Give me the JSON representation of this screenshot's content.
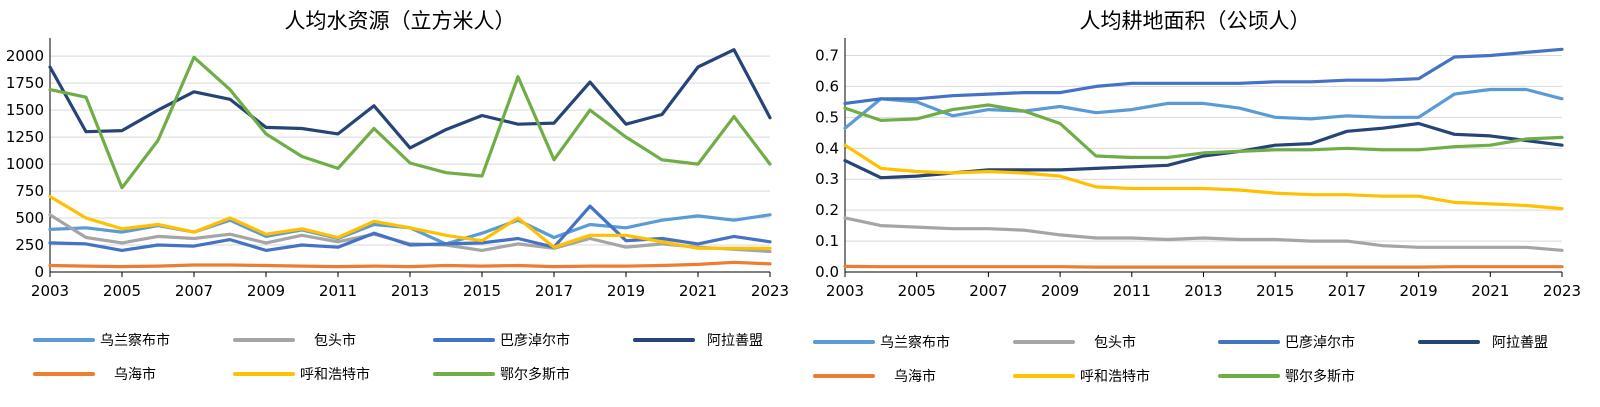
{
  "chart_data": [
    {
      "type": "line",
      "title": "人均水资源（立方米人）",
      "xlabel": "",
      "ylabel": "",
      "grid": true,
      "legend_position": "bottom",
      "x": [
        2003,
        2004,
        2005,
        2006,
        2007,
        2008,
        2009,
        2010,
        2011,
        2012,
        2013,
        2014,
        2015,
        2016,
        2017,
        2018,
        2019,
        2020,
        2021,
        2022,
        2023
      ],
      "xticks": [
        "2003",
        "2005",
        "2007",
        "2009",
        "2011",
        "2013",
        "2015",
        "2017",
        "2019",
        "2021",
        "2023"
      ],
      "ylim": [
        0,
        2150
      ],
      "yticks": [
        0,
        250,
        500,
        750,
        1000,
        1250,
        1500,
        1750,
        2000
      ],
      "series": [
        {
          "name": "乌兰察布市",
          "color": "#5b9bd5",
          "values": [
            395,
            410,
            370,
            430,
            370,
            480,
            330,
            390,
            310,
            440,
            410,
            260,
            360,
            480,
            320,
            440,
            410,
            480,
            520,
            480,
            530
          ]
        },
        {
          "name": "包头市",
          "color": "#a5a5a5",
          "values": [
            530,
            320,
            270,
            330,
            310,
            350,
            270,
            340,
            280,
            350,
            260,
            250,
            200,
            260,
            220,
            310,
            230,
            260,
            230,
            210,
            190
          ]
        },
        {
          "name": "巴彦淖尔市",
          "color": "#4472c4",
          "values": [
            270,
            260,
            200,
            250,
            240,
            300,
            200,
            250,
            230,
            360,
            250,
            260,
            270,
            310,
            230,
            610,
            290,
            310,
            260,
            330,
            280
          ]
        },
        {
          "name": "阿拉善盟",
          "color": "#264478",
          "values": [
            1900,
            1300,
            1310,
            1500,
            1670,
            1600,
            1340,
            1330,
            1280,
            1540,
            1150,
            1320,
            1450,
            1370,
            1380,
            1760,
            1370,
            1460,
            1900,
            2060,
            1430
          ]
        },
        {
          "name": "乌海市",
          "color": "#ed7d31",
          "values": [
            60,
            55,
            50,
            55,
            65,
            65,
            60,
            55,
            50,
            55,
            50,
            60,
            55,
            60,
            50,
            55,
            55,
            60,
            70,
            90,
            75
          ]
        },
        {
          "name": "呼和浩特市",
          "color": "#ffc000",
          "values": [
            700,
            500,
            400,
            440,
            370,
            500,
            350,
            400,
            320,
            470,
            410,
            340,
            290,
            500,
            230,
            340,
            340,
            280,
            220,
            220,
            220
          ]
        },
        {
          "name": "鄂尔多斯市",
          "color": "#70ad47",
          "values": [
            1690,
            1620,
            780,
            1220,
            1990,
            1690,
            1280,
            1070,
            960,
            1330,
            1010,
            920,
            890,
            1810,
            1040,
            1500,
            1250,
            1040,
            1000,
            1440,
            1000
          ]
        }
      ]
    },
    {
      "type": "line",
      "title": "人均耕地面积（公顷人）",
      "xlabel": "",
      "ylabel": "",
      "grid": true,
      "legend_position": "bottom",
      "x": [
        2003,
        2004,
        2005,
        2006,
        2007,
        2008,
        2009,
        2010,
        2011,
        2012,
        2013,
        2014,
        2015,
        2016,
        2017,
        2018,
        2019,
        2020,
        2021,
        2022,
        2023
      ],
      "xticks": [
        "2003",
        "2005",
        "2007",
        "2009",
        "2011",
        "2013",
        "2015",
        "2017",
        "2019",
        "2021",
        "2023"
      ],
      "ylim": [
        0,
        0.75
      ],
      "yticks": [
        0,
        0.1,
        0.2,
        0.3,
        0.4,
        0.5,
        0.6,
        0.7
      ],
      "ytick_labels": [
        "0.0",
        "0.1",
        "0.2",
        "0.3",
        "0.4",
        "0.5",
        "0.6",
        "0.7"
      ],
      "series": [
        {
          "name": "乌兰察布市",
          "color": "#5b9bd5",
          "values": [
            0.465,
            0.56,
            0.55,
            0.505,
            0.525,
            0.52,
            0.535,
            0.515,
            0.525,
            0.545,
            0.545,
            0.53,
            0.5,
            0.495,
            0.505,
            0.5,
            0.5,
            0.575,
            0.59,
            0.59,
            0.56
          ]
        },
        {
          "name": "包头市",
          "color": "#a5a5a5",
          "values": [
            0.175,
            0.15,
            0.145,
            0.14,
            0.14,
            0.135,
            0.12,
            0.11,
            0.11,
            0.105,
            0.11,
            0.105,
            0.105,
            0.1,
            0.1,
            0.085,
            0.08,
            0.08,
            0.08,
            0.08,
            0.07
          ]
        },
        {
          "name": "巴彦淖尔市",
          "color": "#4472c4",
          "values": [
            0.545,
            0.56,
            0.56,
            0.57,
            0.575,
            0.58,
            0.58,
            0.6,
            0.61,
            0.61,
            0.61,
            0.61,
            0.615,
            0.615,
            0.62,
            0.62,
            0.625,
            0.695,
            0.7,
            0.71,
            0.72
          ]
        },
        {
          "name": "阿拉善盟",
          "color": "#264478",
          "values": [
            0.36,
            0.305,
            0.31,
            0.32,
            0.33,
            0.33,
            0.33,
            0.335,
            0.34,
            0.345,
            0.375,
            0.39,
            0.41,
            0.415,
            0.455,
            0.465,
            0.48,
            0.445,
            0.44,
            0.425,
            0.41
          ]
        },
        {
          "name": "乌海市",
          "color": "#ed7d31",
          "values": [
            0.018,
            0.017,
            0.017,
            0.017,
            0.017,
            0.017,
            0.017,
            0.016,
            0.016,
            0.016,
            0.016,
            0.016,
            0.016,
            0.016,
            0.016,
            0.016,
            0.016,
            0.017,
            0.017,
            0.017,
            0.017
          ]
        },
        {
          "name": "呼和浩特市",
          "color": "#ffc000",
          "values": [
            0.41,
            0.335,
            0.325,
            0.32,
            0.325,
            0.32,
            0.31,
            0.275,
            0.27,
            0.27,
            0.27,
            0.265,
            0.255,
            0.25,
            0.25,
            0.245,
            0.245,
            0.225,
            0.22,
            0.215,
            0.205
          ]
        },
        {
          "name": "鄂尔多斯市",
          "color": "#70ad47",
          "values": [
            0.53,
            0.49,
            0.495,
            0.525,
            0.54,
            0.52,
            0.48,
            0.375,
            0.37,
            0.37,
            0.385,
            0.39,
            0.395,
            0.395,
            0.4,
            0.395,
            0.395,
            0.405,
            0.41,
            0.43,
            0.435
          ]
        }
      ]
    }
  ]
}
